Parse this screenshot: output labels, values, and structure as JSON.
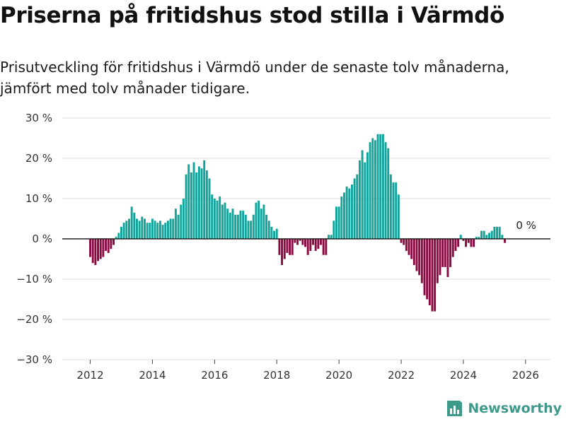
{
  "header": {
    "title": "Priserna på fritidshus stod stilla i Värmdö",
    "subtitle": "Prisutveckling för fritidshus i Värmdö under de senaste tolv månaderna, jämfört med tolv månader tidigare."
  },
  "brand": {
    "name": "Newsworthy",
    "icon": "newsworthy-logo-icon"
  },
  "colors": {
    "positive": "#12a39a",
    "negative": "#8a0b42",
    "grid": "#dddddd",
    "axis": "#222222",
    "brand": "#3d9a8b"
  },
  "chart_data": {
    "type": "bar",
    "title": "Priserna på fritidshus stod stilla i Värmdö",
    "xlabel": "",
    "ylabel": "",
    "unit": "%",
    "ylim": [
      -30,
      30
    ],
    "yticks": [
      30,
      20,
      10,
      0,
      -10,
      -20,
      -30
    ],
    "ytick_labels": [
      "30 %",
      "20 %",
      "10 %",
      "0 %",
      "−10 %",
      "−20 %",
      "−30 %"
    ],
    "xlim": [
      2011.1,
      2026.8
    ],
    "xticks": [
      2012,
      2014,
      2016,
      2018,
      2020,
      2022,
      2024,
      2026
    ],
    "xtick_labels": [
      "2012",
      "2014",
      "2016",
      "2018",
      "2020",
      "2022",
      "2024",
      "2026"
    ],
    "x_start": 2012.0,
    "x_step": 0.08333,
    "values": [
      -4.5,
      -6,
      -6.5,
      -5.5,
      -5,
      -4.5,
      -3,
      -3.5,
      -2.5,
      -1.5,
      0.5,
      1.5,
      3,
      4,
      4.5,
      5,
      8,
      6.5,
      5,
      4.5,
      5.5,
      5,
      4,
      4,
      5,
      4.5,
      4,
      4.5,
      3.5,
      4,
      4.5,
      5,
      5,
      7.5,
      6,
      8.5,
      10,
      16,
      18.5,
      16.5,
      19,
      16.5,
      18,
      17.5,
      19.5,
      17,
      15,
      11,
      10,
      9.5,
      10.5,
      8.5,
      9,
      7.5,
      6.5,
      7.5,
      6,
      6,
      7,
      7,
      6,
      4.5,
      4.5,
      6,
      9,
      9.5,
      7.5,
      8.5,
      6,
      4.5,
      3,
      2,
      2.5,
      -4,
      -6.5,
      -5,
      -3.5,
      -4,
      -4,
      -1,
      -1.5,
      -0.5,
      -1.5,
      -2,
      -4,
      -3,
      -1.5,
      -3,
      -2.5,
      -1.5,
      -4,
      -4,
      1,
      1,
      4.5,
      8,
      8,
      10.5,
      11.5,
      13,
      12.5,
      13.5,
      15,
      16,
      19.5,
      22,
      19,
      21.5,
      24,
      25,
      24.5,
      26,
      26,
      26,
      24,
      22.5,
      16,
      14,
      14,
      11,
      -1,
      -1.5,
      -3,
      -4,
      -5,
      -6.5,
      -8,
      -9,
      -11,
      -14,
      -15,
      -16.5,
      -18,
      -18,
      -11,
      -9,
      -7,
      -7,
      -9.5,
      -7,
      -4.5,
      -3,
      -2,
      1,
      -0.5,
      -2,
      -1,
      -2,
      -2,
      0.5,
      0.5,
      2,
      2,
      1,
      1.5,
      2,
      3,
      3,
      3,
      1,
      -1
    ],
    "annotation": {
      "text": "0 %",
      "x": 2025.92,
      "y": 0
    }
  }
}
